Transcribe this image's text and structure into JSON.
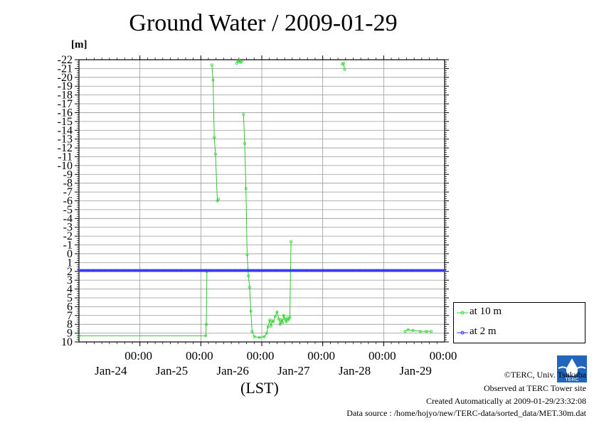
{
  "title": "Ground Water / 2009-01-29",
  "unit_label": "[m]",
  "xlabel": "(LST)",
  "credits": {
    "line1": "©TERC, Univ. Tsukuba",
    "line2": "Observed at TERC Tower site",
    "line3": "Created Automatically at 2009-01-29/23:32:08",
    "line4": "Data source : /home/hojyo/new/TERC-data/sorted_data/MET.30m.dat"
  },
  "logo_text": "TERC",
  "chart_data": {
    "type": "line",
    "title": "Ground Water / 2009-01-29",
    "ylabel": "[m]",
    "xlabel": "(LST)",
    "xlim": [
      0,
      6
    ],
    "ylim": [
      10,
      -22
    ],
    "y_inverted": true,
    "grid": true,
    "legend_position": "bottom-right",
    "y_ticks": [
      -22,
      -21,
      -20,
      -19,
      -18,
      -17,
      -16,
      -15,
      -14,
      -13,
      -12,
      -11,
      -10,
      -9,
      -8,
      -7,
      -6,
      -5,
      -4,
      -3,
      -2,
      -1,
      0,
      1,
      2,
      3,
      4,
      5,
      6,
      7,
      8,
      9,
      10
    ],
    "y_tick_labels": [
      "-22",
      "-21",
      "-20",
      "-19",
      "-18",
      "-17",
      "-16",
      "-15",
      "-14",
      "-13",
      "-12",
      "-11",
      "-10",
      "-9",
      "-8",
      "-7",
      "-6",
      "-5",
      "-4",
      "-3",
      "-2",
      "-1",
      "0",
      "1",
      "2",
      "3",
      "4",
      "5",
      "6",
      "7",
      "8",
      "9",
      "10"
    ],
    "x_tick_labels": [
      {
        "time": "00:00",
        "date": "Jan-24"
      },
      {
        "time": "00:00",
        "date": "Jan-25"
      },
      {
        "time": "00:00",
        "date": "Jan-26"
      },
      {
        "time": "00:00",
        "date": "Jan-27"
      },
      {
        "time": "00:00",
        "date": "Jan-28"
      },
      {
        "time": "00:00",
        "date": "Jan-29"
      }
    ],
    "series": [
      {
        "name": "at 10 m",
        "color": "#33dd33",
        "segments": [
          [
            [
              0.0,
              9.3
            ],
            [
              2.08,
              9.3
            ],
            [
              2.09,
              8.0
            ],
            [
              2.1,
              2.0
            ]
          ],
          [
            [
              2.18,
              -21.4
            ],
            [
              2.2,
              -19.7
            ],
            [
              2.22,
              -13.2
            ],
            [
              2.24,
              -11.3
            ],
            [
              2.27,
              -6.0
            ],
            [
              2.29,
              -6.2
            ]
          ],
          [
            [
              2.59,
              -21.6
            ],
            [
              2.61,
              -21.8
            ],
            [
              2.63,
              -21.9
            ],
            [
              2.65,
              -21.7
            ],
            [
              2.67,
              -21.8
            ]
          ],
          [
            [
              2.7,
              -15.8
            ],
            [
              2.72,
              -12.5
            ],
            [
              2.74,
              -7.4
            ],
            [
              2.76,
              0.1
            ],
            [
              2.78,
              2.5
            ],
            [
              2.8,
              3.8
            ],
            [
              2.82,
              6.5
            ],
            [
              2.84,
              8.8
            ],
            [
              2.88,
              9.4
            ],
            [
              2.96,
              9.5
            ],
            [
              3.04,
              9.4
            ],
            [
              3.08,
              9.0
            ],
            [
              3.1,
              8.3
            ],
            [
              3.13,
              7.5
            ],
            [
              3.15,
              8.2
            ],
            [
              3.17,
              7.6
            ],
            [
              3.19,
              7.7
            ],
            [
              3.22,
              7.1
            ],
            [
              3.25,
              6.6
            ],
            [
              3.28,
              7.4
            ],
            [
              3.3,
              8.0
            ],
            [
              3.32,
              7.5
            ],
            [
              3.34,
              7.8
            ],
            [
              3.36,
              7.0
            ],
            [
              3.38,
              7.4
            ],
            [
              3.4,
              7.7
            ],
            [
              3.42,
              7.3
            ],
            [
              3.44,
              7.5
            ],
            [
              3.46,
              7.2
            ],
            [
              3.48,
              -1.4
            ]
          ],
          [
            [
              4.32,
              -21.5
            ],
            [
              4.34,
              -21.6
            ],
            [
              4.36,
              -20.9
            ]
          ],
          [
            [
              5.35,
              8.8
            ],
            [
              5.4,
              8.6
            ],
            [
              5.48,
              8.7
            ],
            [
              5.6,
              8.8
            ],
            [
              5.7,
              8.8
            ],
            [
              5.78,
              8.8
            ]
          ]
        ]
      },
      {
        "name": "at 2 m",
        "color": "#3333ee",
        "segments": [
          [
            [
              0.0,
              1.9
            ],
            [
              6.0,
              1.9
            ]
          ]
        ]
      }
    ]
  },
  "legend": [
    {
      "label": "at 10 m",
      "color": "#33dd33"
    },
    {
      "label": "at 2 m",
      "color": "#3333ee"
    }
  ]
}
